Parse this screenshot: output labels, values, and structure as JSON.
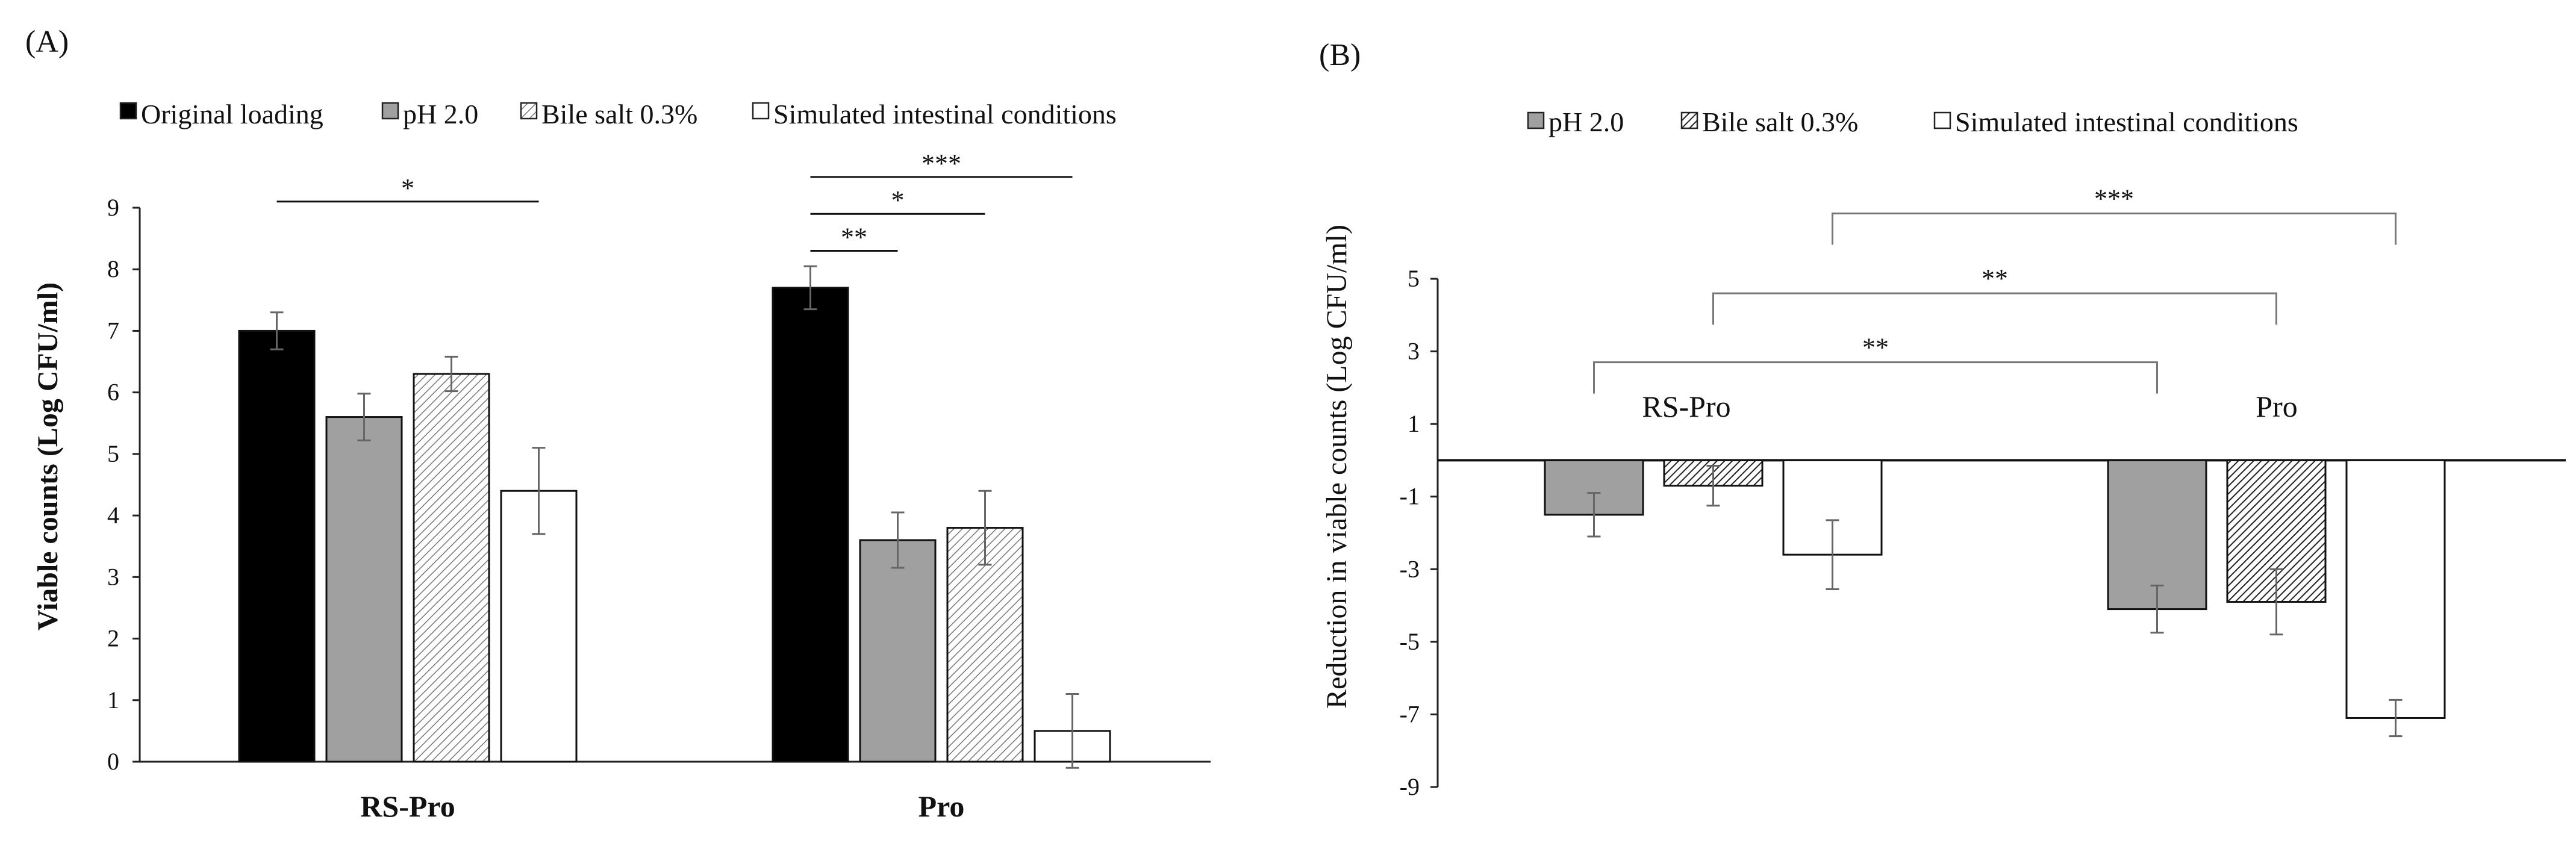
{
  "chart_data": [
    {
      "panel": "(A)",
      "type": "bar",
      "ylabel": "Viable counts (Log CFU/ml)",
      "xlabel": "",
      "ylim": [
        0,
        9
      ],
      "yticks": [
        "0",
        "1",
        "2",
        "3",
        "4",
        "5",
        "6",
        "7",
        "8",
        "9"
      ],
      "categories": [
        "RS-Pro",
        "Pro"
      ],
      "series": [
        {
          "name": "Original loading",
          "color": "#000000",
          "pattern": "solid",
          "values": [
            7.0,
            7.7
          ],
          "errors": [
            0.3,
            0.35
          ]
        },
        {
          "name": "pH 2.0",
          "color": "#a0a0a0",
          "pattern": "solid",
          "values": [
            5.6,
            3.6
          ],
          "errors": [
            0.38,
            0.45
          ]
        },
        {
          "name": "Bile salt 0.3%",
          "color": "#ffffff",
          "pattern": "light-hatch",
          "values": [
            6.3,
            3.8
          ],
          "errors": [
            0.28,
            0.6
          ]
        },
        {
          "name": "Simulated intestinal conditions",
          "color": "#ffffff",
          "pattern": "none",
          "values": [
            4.4,
            0.5
          ],
          "errors": [
            0.7,
            0.6
          ]
        }
      ],
      "significance": [
        {
          "label": "*",
          "category": "RS-Pro",
          "from": "Original loading",
          "to": "Simulated intestinal conditions",
          "y": 9.1
        },
        {
          "label": "**",
          "category": "Pro",
          "from": "Original loading",
          "to": "pH 2.0",
          "y": 8.3
        },
        {
          "label": "*",
          "category": "Pro",
          "from": "Original loading",
          "to": "Bile salt 0.3%",
          "y": 8.9
        },
        {
          "label": "***",
          "category": "Pro",
          "from": "Original loading",
          "to": "Simulated intestinal conditions",
          "y": 9.5
        }
      ]
    },
    {
      "panel": "(B)",
      "type": "bar",
      "ylabel": "Reduction in viable counts (Log CFU/ml)",
      "xlabel": "",
      "ylim": [
        -9,
        5
      ],
      "yticks": [
        "-9",
        "-7",
        "-5",
        "-3",
        "-1",
        "1",
        "3",
        "5"
      ],
      "categories": [
        "RS-Pro",
        "Pro"
      ],
      "series": [
        {
          "name": "pH 2.0",
          "color": "#a0a0a0",
          "pattern": "solid",
          "values": [
            -1.5,
            -4.1
          ],
          "errors": [
            0.6,
            0.65
          ]
        },
        {
          "name": "Bile salt 0.3%",
          "color": "#ffffff",
          "pattern": "dense-hatch",
          "values": [
            -0.7,
            -3.9
          ],
          "errors": [
            0.55,
            0.9
          ]
        },
        {
          "name": "Simulated intestinal conditions",
          "color": "#ffffff",
          "pattern": "none",
          "values": [
            -2.6,
            -7.1
          ],
          "errors": [
            0.95,
            0.5
          ]
        }
      ],
      "significance": [
        {
          "label": "**",
          "from": "RS-Pro pH 2.0",
          "to": "Pro pH 2.0",
          "y": 2.7
        },
        {
          "label": "**",
          "from": "RS-Pro Bile salt 0.3%",
          "to": "Pro Bile salt 0.3%",
          "y": 4.6
        },
        {
          "label": "***",
          "from": "RS-Pro Simulated intestinal conditions",
          "to": "Pro Simulated intestinal conditions",
          "y": 6.8
        }
      ]
    }
  ]
}
